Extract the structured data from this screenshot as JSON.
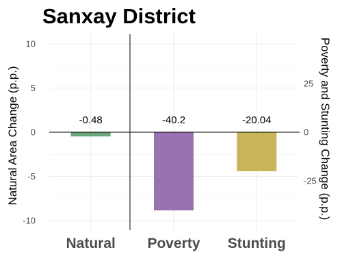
{
  "chart_data": {
    "type": "bar",
    "title": "Sanxay District",
    "categories": [
      "Natural",
      "Poverty",
      "Stunting"
    ],
    "series": [
      {
        "values": [
          -0.48,
          -40.2,
          -20.04
        ],
        "axis": [
          "left",
          "right",
          "right"
        ],
        "colors": [
          "#6aa677",
          "#9872b1",
          "#c9b458"
        ]
      }
    ],
    "data_labels": [
      "-0.48",
      "-40.2",
      "-20.04"
    ],
    "y_left": {
      "label": "Natural Area Change (p.p.)",
      "range": [
        -11,
        10.5
      ],
      "ticks": [
        10,
        5,
        0,
        -5,
        -10
      ],
      "tick_labels": [
        "10",
        "5",
        "0",
        "-5",
        "-10"
      ]
    },
    "y_right": {
      "label": "Poverty and Stunting Change (p.p.)",
      "range": [
        -49.5,
        47.25
      ],
      "ticks": [
        25,
        0,
        -25
      ],
      "tick_labels": [
        "25",
        "0",
        "-25"
      ]
    },
    "grid": true,
    "legend": "none"
  }
}
